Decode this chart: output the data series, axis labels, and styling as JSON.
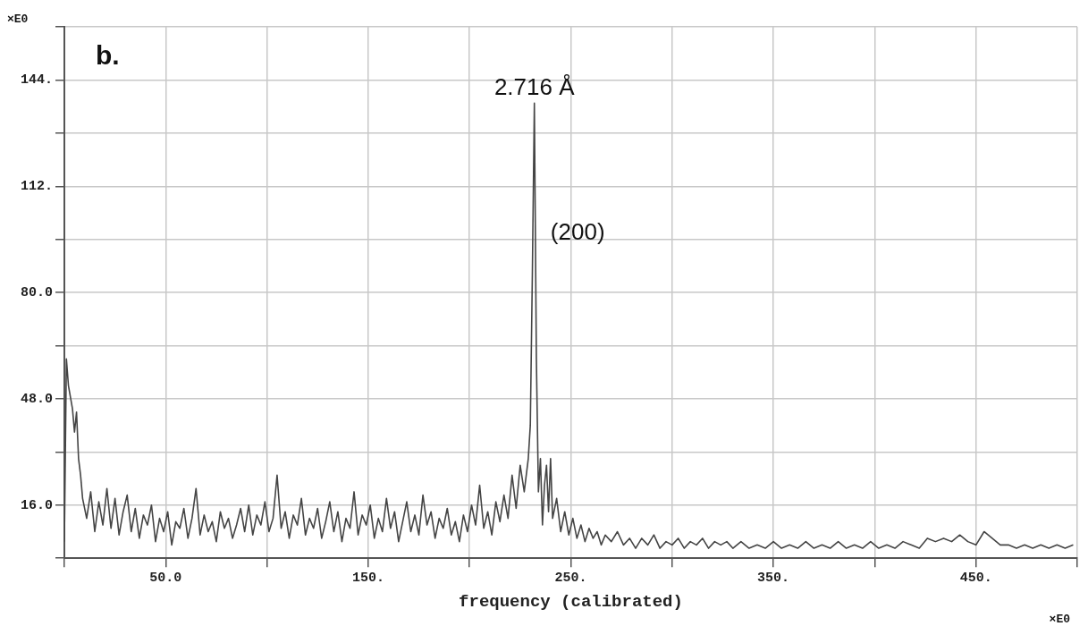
{
  "chart_data": {
    "type": "line",
    "xlabel": "frequency (calibrated)",
    "annotations": [
      "b.",
      "×E0",
      "×E0",
      {
        "text": "2.716 Å",
        "x": 232,
        "y": 137
      },
      "(200)"
    ],
    "xlim": [
      0,
      500
    ],
    "ylim": [
      0,
      160
    ],
    "xticks": [
      {
        "value": 0,
        "label": null
      },
      {
        "value": 50,
        "label": "50.0"
      },
      {
        "value": 100,
        "label": null
      },
      {
        "value": 150,
        "label": "150."
      },
      {
        "value": 200,
        "label": null
      },
      {
        "value": 250,
        "label": "250."
      },
      {
        "value": 300,
        "label": null
      },
      {
        "value": 350,
        "label": "350."
      },
      {
        "value": 400,
        "label": null
      },
      {
        "value": 450,
        "label": "450."
      },
      {
        "value": 500,
        "label": null
      }
    ],
    "yticks": [
      {
        "value": 0,
        "label": null
      },
      {
        "value": 16,
        "label": "16.0"
      },
      {
        "value": 32,
        "label": null
      },
      {
        "value": 48,
        "label": "48.0"
      },
      {
        "value": 64,
        "label": null
      },
      {
        "value": 80,
        "label": "80.0"
      },
      {
        "value": 96,
        "label": null
      },
      {
        "value": 112,
        "label": "112."
      },
      {
        "value": 128,
        "label": null
      },
      {
        "value": 144,
        "label": "144."
      },
      {
        "value": 160,
        "label": null
      }
    ],
    "grid": true,
    "legend": false,
    "marker": "none",
    "line_style": "solid",
    "series": [
      {
        "color": "#444444",
        "x": [
          0,
          1,
          2,
          4,
          5,
          6,
          7,
          8,
          9,
          11,
          13,
          15,
          17,
          19,
          21,
          23,
          25,
          27,
          29,
          31,
          33,
          35,
          37,
          39,
          41,
          43,
          45,
          47,
          49,
          51,
          53,
          55,
          57,
          59,
          61,
          63,
          65,
          67,
          69,
          71,
          73,
          75,
          77,
          79,
          81,
          83,
          85,
          87,
          89,
          91,
          93,
          95,
          97,
          99,
          101,
          103,
          105,
          107,
          109,
          111,
          113,
          115,
          117,
          119,
          121,
          123,
          125,
          127,
          129,
          131,
          133,
          135,
          137,
          139,
          141,
          143,
          145,
          147,
          149,
          151,
          153,
          155,
          157,
          159,
          161,
          163,
          165,
          167,
          169,
          171,
          173,
          175,
          177,
          179,
          181,
          183,
          185,
          187,
          189,
          191,
          193,
          195,
          197,
          199,
          201,
          203,
          205,
          207,
          209,
          211,
          213,
          215,
          217,
          219,
          221,
          223,
          225,
          227,
          229,
          230,
          231,
          232,
          233,
          234,
          235,
          236,
          237,
          238,
          239,
          240,
          241,
          243,
          245,
          247,
          249,
          251,
          253,
          255,
          257,
          259,
          261,
          263,
          265,
          267,
          270,
          273,
          276,
          279,
          282,
          285,
          288,
          291,
          294,
          297,
          300,
          303,
          306,
          309,
          312,
          315,
          318,
          321,
          324,
          327,
          330,
          334,
          338,
          342,
          346,
          350,
          354,
          358,
          362,
          366,
          370,
          374,
          378,
          382,
          386,
          390,
          394,
          398,
          402,
          406,
          410,
          414,
          418,
          422,
          426,
          430,
          434,
          438,
          442,
          446,
          450,
          454,
          458,
          462,
          466,
          470,
          474,
          478,
          482,
          486,
          490,
          494,
          498
        ],
        "values": [
          5,
          60,
          52,
          45,
          38,
          44,
          30,
          25,
          18,
          12,
          20,
          8,
          17,
          10,
          21,
          9,
          18,
          7,
          14,
          19,
          8,
          15,
          6,
          13,
          10,
          16,
          5,
          12,
          8,
          14,
          4,
          11,
          9,
          15,
          6,
          12,
          21,
          7,
          13,
          8,
          11,
          5,
          14,
          9,
          12,
          6,
          10,
          15,
          8,
          16,
          7,
          13,
          10,
          17,
          8,
          12,
          25,
          9,
          14,
          6,
          13,
          10,
          18,
          7,
          12,
          9,
          15,
          6,
          11,
          17,
          8,
          14,
          5,
          12,
          9,
          20,
          7,
          13,
          10,
          16,
          6,
          12,
          8,
          18,
          9,
          14,
          5,
          11,
          17,
          8,
          13,
          7,
          19,
          10,
          14,
          6,
          12,
          9,
          15,
          7,
          11,
          5,
          13,
          8,
          16,
          10,
          22,
          9,
          14,
          7,
          17,
          11,
          19,
          12,
          25,
          15,
          28,
          20,
          30,
          40,
          85,
          137,
          60,
          20,
          30,
          10,
          22,
          28,
          14,
          30,
          12,
          18,
          8,
          14,
          7,
          12,
          6,
          10,
          5,
          9,
          6,
          8,
          4,
          7,
          5,
          8,
          4,
          6,
          3,
          6,
          4,
          7,
          3,
          5,
          4,
          6,
          3,
          5,
          4,
          6,
          3,
          5,
          4,
          5,
          3,
          5,
          3,
          4,
          3,
          5,
          3,
          4,
          3,
          5,
          3,
          4,
          3,
          5,
          3,
          4,
          3,
          5,
          3,
          4,
          3,
          5,
          4,
          3,
          6,
          5,
          6,
          5,
          7,
          5,
          4,
          8,
          6,
          4,
          4,
          3,
          4,
          3,
          4,
          3,
          4,
          3,
          4
        ]
      }
    ]
  }
}
